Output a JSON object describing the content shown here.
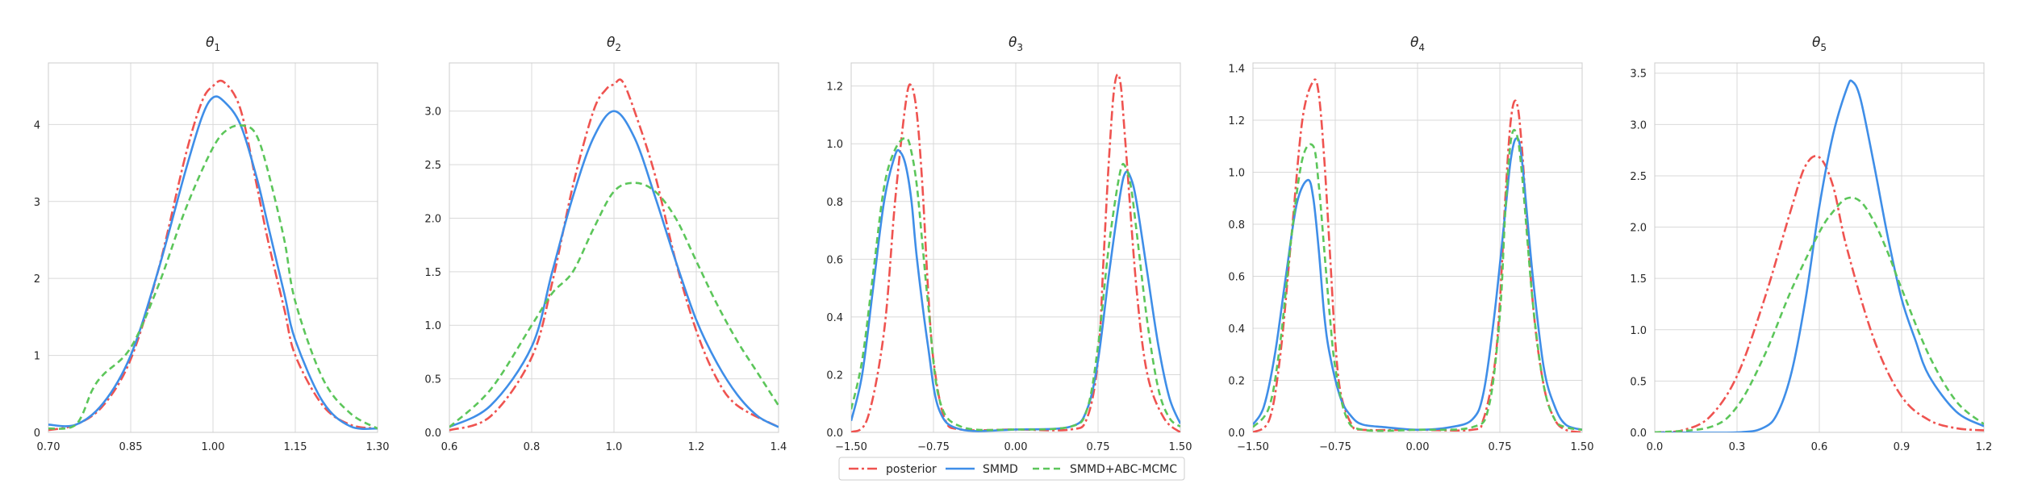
{
  "colors": {
    "posterior": "#ef5350",
    "smmd": "#3f8ee8",
    "smmd_abc_mcmc": "#5cc65a",
    "grid": "#d9d9d9",
    "frame": "#cccccc"
  },
  "legend": [
    {
      "key": "posterior",
      "label": "posterior",
      "dash": "dashdot"
    },
    {
      "key": "smmd",
      "label": "SMMD",
      "dash": "solid"
    },
    {
      "key": "smmd_abc_mcmc",
      "label": "SMMD+ABC-MCMC",
      "dash": "dashed"
    }
  ],
  "chart_data": [
    {
      "type": "line",
      "title_symbol": "θ",
      "title_sub": "1",
      "xlim": [
        0.7,
        1.3
      ],
      "ylim": [
        0,
        4.8
      ],
      "xticks": [
        0.7,
        0.85,
        1.0,
        1.15,
        1.3
      ],
      "xtick_labels": [
        "0.70",
        "0.85",
        "1.00",
        "1.15",
        "1.30"
      ],
      "yticks": [
        0,
        1,
        2,
        3,
        4
      ],
      "ytick_labels": [
        "0",
        "1",
        "2",
        "3",
        "4"
      ],
      "grid": true,
      "series": [
        {
          "key": "posterior",
          "x": [
            0.7,
            0.75,
            0.8,
            0.85,
            0.9,
            0.95,
            0.98,
            1.0,
            1.02,
            1.05,
            1.08,
            1.1,
            1.13,
            1.15,
            1.2,
            1.25,
            1.3
          ],
          "y": [
            0.03,
            0.1,
            0.35,
            0.95,
            2.1,
            3.6,
            4.3,
            4.5,
            4.55,
            4.2,
            3.2,
            2.5,
            1.6,
            1.0,
            0.35,
            0.1,
            0.05
          ]
        },
        {
          "key": "smmd",
          "x": [
            0.7,
            0.75,
            0.8,
            0.85,
            0.9,
            0.95,
            0.98,
            1.0,
            1.02,
            1.05,
            1.08,
            1.1,
            1.13,
            1.15,
            1.2,
            1.25,
            1.3
          ],
          "y": [
            0.1,
            0.1,
            0.38,
            1.0,
            2.1,
            3.4,
            4.1,
            4.35,
            4.3,
            4.0,
            3.3,
            2.7,
            1.8,
            1.2,
            0.4,
            0.08,
            0.05
          ]
        },
        {
          "key": "smmd_abc_mcmc",
          "x": [
            0.7,
            0.75,
            0.78,
            0.8,
            0.85,
            0.9,
            0.95,
            1.0,
            1.03,
            1.06,
            1.08,
            1.1,
            1.13,
            1.15,
            1.2,
            1.25,
            1.3
          ],
          "y": [
            0.05,
            0.1,
            0.55,
            0.75,
            1.1,
            1.9,
            2.9,
            3.7,
            3.95,
            3.98,
            3.85,
            3.4,
            2.5,
            1.7,
            0.7,
            0.25,
            0.05
          ]
        }
      ]
    },
    {
      "type": "line",
      "title_symbol": "θ",
      "title_sub": "2",
      "xlim": [
        0.6,
        1.4
      ],
      "ylim": [
        0,
        3.45
      ],
      "xticks": [
        0.6,
        0.8,
        1.0,
        1.2,
        1.4
      ],
      "xtick_labels": [
        "0.6",
        "0.8",
        "1.0",
        "1.2",
        "1.4"
      ],
      "yticks": [
        0,
        0.5,
        1.0,
        1.5,
        2.0,
        2.5,
        3.0
      ],
      "ytick_labels": [
        "0.0",
        "0.5",
        "1.0",
        "1.5",
        "2.0",
        "2.5",
        "3.0"
      ],
      "grid": true,
      "series": [
        {
          "key": "posterior",
          "x": [
            0.6,
            0.7,
            0.8,
            0.85,
            0.9,
            0.95,
            0.98,
            1.0,
            1.02,
            1.05,
            1.1,
            1.15,
            1.2,
            1.25,
            1.3,
            1.4
          ],
          "y": [
            0.02,
            0.15,
            0.7,
            1.4,
            2.3,
            3.0,
            3.2,
            3.25,
            3.28,
            3.0,
            2.4,
            1.6,
            0.95,
            0.5,
            0.25,
            0.05
          ]
        },
        {
          "key": "smmd",
          "x": [
            0.6,
            0.7,
            0.8,
            0.85,
            0.9,
            0.95,
            1.0,
            1.05,
            1.1,
            1.15,
            1.2,
            1.25,
            1.3,
            1.35,
            1.4
          ],
          "y": [
            0.05,
            0.25,
            0.8,
            1.5,
            2.2,
            2.75,
            3.0,
            2.75,
            2.2,
            1.6,
            1.05,
            0.65,
            0.35,
            0.15,
            0.05
          ]
        },
        {
          "key": "smmd_abc_mcmc",
          "x": [
            0.6,
            0.7,
            0.8,
            0.85,
            0.9,
            0.95,
            1.0,
            1.05,
            1.1,
            1.15,
            1.2,
            1.25,
            1.3,
            1.35,
            1.4
          ],
          "y": [
            0.05,
            0.4,
            1.0,
            1.3,
            1.5,
            1.9,
            2.25,
            2.33,
            2.25,
            2.0,
            1.6,
            1.2,
            0.85,
            0.55,
            0.25
          ]
        }
      ]
    },
    {
      "type": "line",
      "title_symbol": "θ",
      "title_sub": "3",
      "xlim": [
        -1.5,
        1.5
      ],
      "ylim": [
        0,
        1.28
      ],
      "xticks": [
        -1.5,
        -0.75,
        0.0,
        0.75,
        1.5
      ],
      "xtick_labels": [
        "−1.50",
        "−0.75",
        "0.00",
        "0.75",
        "1.50"
      ],
      "yticks": [
        0,
        0.2,
        0.4,
        0.6,
        0.8,
        1.0,
        1.2
      ],
      "ytick_labels": [
        "0.0",
        "0.2",
        "0.4",
        "0.6",
        "0.8",
        "1.0",
        "1.2"
      ],
      "grid": true,
      "series": [
        {
          "key": "posterior",
          "x": [
            -1.5,
            -1.35,
            -1.2,
            -1.1,
            -1.0,
            -0.95,
            -0.9,
            -0.85,
            -0.8,
            -0.75,
            -0.65,
            -0.5,
            0.0,
            0.5,
            0.65,
            0.75,
            0.8,
            0.85,
            0.9,
            0.95,
            1.0,
            1.1,
            1.2,
            1.35,
            1.5
          ],
          "y": [
            0.0,
            0.05,
            0.35,
            0.8,
            1.15,
            1.2,
            1.1,
            0.85,
            0.5,
            0.25,
            0.05,
            0.01,
            0.01,
            0.01,
            0.05,
            0.25,
            0.6,
            0.95,
            1.2,
            1.22,
            1.0,
            0.5,
            0.2,
            0.05,
            0.0
          ]
        },
        {
          "key": "smmd",
          "x": [
            -1.5,
            -1.4,
            -1.3,
            -1.2,
            -1.1,
            -1.05,
            -1.0,
            -0.95,
            -0.9,
            -0.8,
            -0.7,
            -0.5,
            0.0,
            0.5,
            0.65,
            0.75,
            0.85,
            0.95,
            1.0,
            1.05,
            1.1,
            1.2,
            1.3,
            1.4,
            1.5
          ],
          "y": [
            0.04,
            0.2,
            0.5,
            0.8,
            0.96,
            0.97,
            0.92,
            0.8,
            0.6,
            0.3,
            0.08,
            0.01,
            0.01,
            0.02,
            0.08,
            0.25,
            0.55,
            0.82,
            0.9,
            0.88,
            0.8,
            0.55,
            0.3,
            0.12,
            0.03
          ]
        },
        {
          "key": "smmd_abc_mcmc",
          "x": [
            -1.5,
            -1.4,
            -1.3,
            -1.2,
            -1.1,
            -1.0,
            -0.95,
            -0.9,
            -0.85,
            -0.8,
            -0.7,
            -0.5,
            0.0,
            0.5,
            0.65,
            0.75,
            0.85,
            0.95,
            1.0,
            1.05,
            1.1,
            1.2,
            1.3,
            1.4,
            1.5
          ],
          "y": [
            0.08,
            0.25,
            0.55,
            0.85,
            0.98,
            1.02,
            0.97,
            0.85,
            0.65,
            0.45,
            0.12,
            0.02,
            0.01,
            0.02,
            0.08,
            0.3,
            0.65,
            0.9,
            0.92,
            0.85,
            0.7,
            0.38,
            0.15,
            0.05,
            0.02
          ]
        }
      ]
    },
    {
      "type": "line",
      "title_symbol": "θ",
      "title_sub": "4",
      "xlim": [
        -1.5,
        1.5
      ],
      "ylim": [
        0,
        1.42
      ],
      "xticks": [
        -1.5,
        -0.75,
        0.0,
        0.75,
        1.5
      ],
      "xtick_labels": [
        "−1.50",
        "−0.75",
        "0.00",
        "0.75",
        "1.50"
      ],
      "yticks": [
        0,
        0.2,
        0.4,
        0.6,
        0.8,
        1.0,
        1.2,
        1.4
      ],
      "ytick_labels": [
        "0.0",
        "0.2",
        "0.4",
        "0.6",
        "0.8",
        "1.0",
        "1.2",
        "1.4"
      ],
      "grid": true,
      "series": [
        {
          "key": "posterior",
          "x": [
            -1.5,
            -1.35,
            -1.25,
            -1.15,
            -1.05,
            -0.95,
            -0.9,
            -0.85,
            -0.8,
            -0.75,
            -0.7,
            -0.6,
            -0.5,
            0.0,
            0.5,
            0.6,
            0.7,
            0.75,
            0.8,
            0.85,
            0.9,
            0.95,
            1.05,
            1.15,
            1.25,
            1.35,
            1.5
          ],
          "y": [
            0.0,
            0.05,
            0.3,
            0.75,
            1.2,
            1.35,
            1.3,
            1.05,
            0.7,
            0.35,
            0.15,
            0.03,
            0.01,
            0.01,
            0.01,
            0.05,
            0.25,
            0.5,
            0.9,
            1.2,
            1.27,
            1.1,
            0.5,
            0.18,
            0.05,
            0.01,
            0.0
          ]
        },
        {
          "key": "smmd",
          "x": [
            -1.5,
            -1.4,
            -1.3,
            -1.2,
            -1.1,
            -1.0,
            -0.95,
            -0.9,
            -0.85,
            -0.8,
            -0.7,
            -0.6,
            -0.5,
            -0.3,
            0.0,
            0.3,
            0.5,
            0.6,
            0.7,
            0.8,
            0.85,
            0.9,
            0.95,
            1.05,
            1.15,
            1.25,
            1.35,
            1.5
          ],
          "y": [
            0.03,
            0.1,
            0.3,
            0.6,
            0.88,
            0.97,
            0.9,
            0.7,
            0.45,
            0.3,
            0.13,
            0.06,
            0.03,
            0.02,
            0.01,
            0.02,
            0.05,
            0.15,
            0.45,
            0.85,
            1.05,
            1.13,
            1.05,
            0.6,
            0.25,
            0.1,
            0.03,
            0.01
          ]
        },
        {
          "key": "smmd_abc_mcmc",
          "x": [
            -1.5,
            -1.35,
            -1.25,
            -1.15,
            -1.05,
            -0.95,
            -0.9,
            -0.85,
            -0.8,
            -0.75,
            -0.65,
            -0.5,
            0.0,
            0.5,
            0.65,
            0.75,
            0.8,
            0.85,
            0.9,
            0.95,
            1.05,
            1.15,
            1.25,
            1.35,
            1.5
          ],
          "y": [
            0.02,
            0.1,
            0.35,
            0.75,
            1.05,
            1.1,
            0.95,
            0.7,
            0.45,
            0.25,
            0.06,
            0.01,
            0.01,
            0.02,
            0.1,
            0.45,
            0.85,
            1.12,
            1.15,
            1.0,
            0.5,
            0.18,
            0.05,
            0.02,
            0.01
          ]
        }
      ]
    },
    {
      "type": "line",
      "title_symbol": "θ",
      "title_sub": "5",
      "xlim": [
        0.0,
        1.2
      ],
      "ylim": [
        0,
        3.6
      ],
      "xticks": [
        0.0,
        0.3,
        0.6,
        0.9,
        1.2
      ],
      "xtick_labels": [
        "0.0",
        "0.3",
        "0.6",
        "0.9",
        "1.2"
      ],
      "yticks": [
        0,
        0.5,
        1.0,
        1.5,
        2.0,
        2.5,
        3.0,
        3.5
      ],
      "ytick_labels": [
        "0.0",
        "0.5",
        "1.0",
        "1.5",
        "2.0",
        "2.5",
        "3.0",
        "3.5"
      ],
      "grid": true,
      "series": [
        {
          "key": "posterior",
          "x": [
            0.0,
            0.1,
            0.2,
            0.3,
            0.4,
            0.5,
            0.55,
            0.6,
            0.65,
            0.7,
            0.8,
            0.9,
            1.0,
            1.1,
            1.2
          ],
          "y": [
            0.0,
            0.02,
            0.15,
            0.55,
            1.3,
            2.2,
            2.6,
            2.68,
            2.4,
            1.8,
            0.9,
            0.35,
            0.12,
            0.04,
            0.02
          ]
        },
        {
          "key": "smmd",
          "x": [
            0.0,
            0.3,
            0.4,
            0.45,
            0.5,
            0.55,
            0.6,
            0.65,
            0.7,
            0.72,
            0.75,
            0.8,
            0.85,
            0.9,
            0.95,
            1.0,
            1.1,
            1.2
          ],
          "y": [
            0.0,
            0.0,
            0.05,
            0.2,
            0.6,
            1.3,
            2.2,
            2.9,
            3.35,
            3.42,
            3.25,
            2.6,
            1.9,
            1.3,
            0.9,
            0.55,
            0.2,
            0.06
          ]
        },
        {
          "key": "smmd_abc_mcmc",
          "x": [
            0.0,
            0.2,
            0.3,
            0.4,
            0.5,
            0.6,
            0.65,
            0.7,
            0.75,
            0.8,
            0.85,
            0.9,
            1.0,
            1.1,
            1.2
          ],
          "y": [
            0.0,
            0.05,
            0.25,
            0.75,
            1.4,
            1.95,
            2.15,
            2.28,
            2.25,
            2.05,
            1.75,
            1.4,
            0.75,
            0.3,
            0.08
          ]
        }
      ]
    }
  ]
}
